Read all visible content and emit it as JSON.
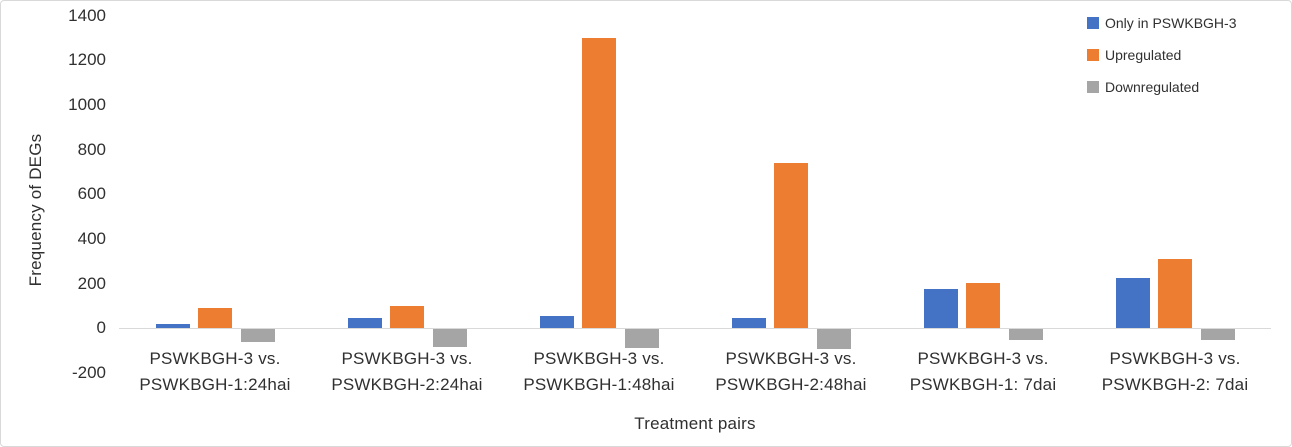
{
  "chart_data": {
    "type": "bar",
    "title": "",
    "xlabel": "Treatment pairs",
    "ylabel": "Frequency of DEGs",
    "ylim": [
      -200,
      1400
    ],
    "yticks": [
      1400,
      1200,
      1000,
      800,
      600,
      400,
      200,
      0,
      -200
    ],
    "grid": false,
    "legend_position": "top-right",
    "axis_line_color": "#D9D9D9",
    "text_color": "#303030",
    "background_color": "#FFFFFF",
    "categories": [
      [
        "PSWKBGH-3 vs.",
        "PSWKBGH-1:24hai"
      ],
      [
        "PSWKBGH-3 vs.",
        "PSWKBGH-2:24hai"
      ],
      [
        "PSWKBGH-3 vs.",
        "PSWKBGH-1:48hai"
      ],
      [
        "PSWKBGH-3 vs.",
        "PSWKBGH-2:48hai"
      ],
      [
        "PSWKBGH-3 vs.",
        "PSWKBGH-1: 7dai"
      ],
      [
        "PSWKBGH-3 vs.",
        "PSWKBGH-2: 7dai"
      ]
    ],
    "series": [
      {
        "name": "Only in PSWKBGH-3",
        "color": "#4472C4",
        "values": [
          20,
          45,
          55,
          45,
          175,
          225
        ]
      },
      {
        "name": "Upregulated",
        "color": "#ED7D31",
        "values": [
          90,
          100,
          1300,
          740,
          205,
          310
        ]
      },
      {
        "name": "Downregulated",
        "color": "#A5A5A5",
        "values": [
          -55,
          -80,
          -85,
          -90,
          -50,
          -50
        ]
      }
    ]
  }
}
